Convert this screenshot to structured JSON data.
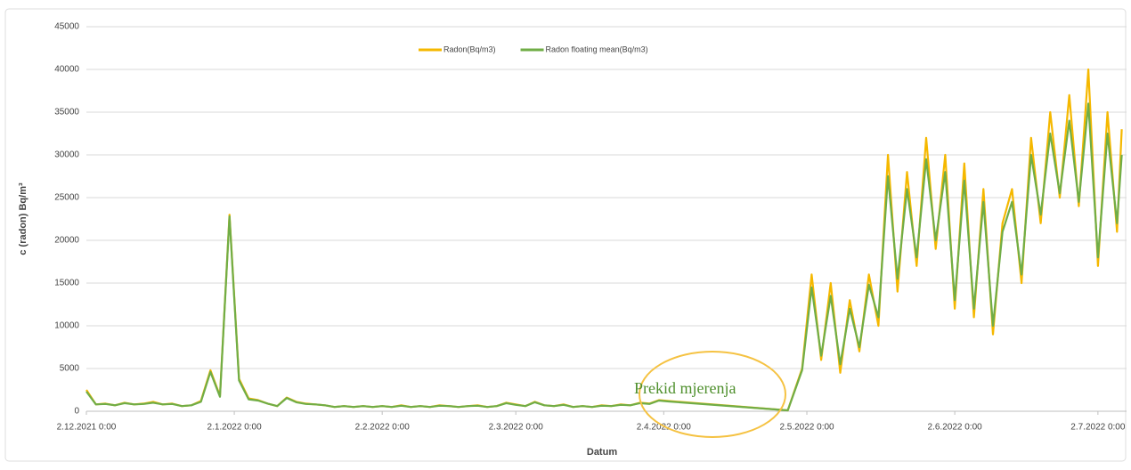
{
  "chart_data": {
    "type": "line",
    "xlabel": "Datum",
    "ylabel": "c (radon) Bq/m³",
    "annotation": "Prekid mjerenja",
    "x": [
      "2.12.2021 0:00",
      "4.12.2021 0:00",
      "6.12.2021 0:00",
      "8.12.2021 0:00",
      "10.12.2021 0:00",
      "12.12.2021 0:00",
      "14.12.2021 0:00",
      "16.12.2021 0:00",
      "18.12.2021 0:00",
      "20.12.2021 0:00",
      "22.12.2021 0:00",
      "24.12.2021 0:00",
      "26.12.2021 0:00",
      "28.12.2021 0:00",
      "30.12.2021 0:00",
      "1.1.2022 0:00",
      "3.1.2022 0:00",
      "5.1.2022 0:00",
      "7.1.2022 0:00",
      "9.1.2022 0:00",
      "11.1.2022 0:00",
      "13.1.2022 0:00",
      "15.1.2022 0:00",
      "17.1.2022 0:00",
      "19.1.2022 0:00",
      "21.1.2022 0:00",
      "23.1.2022 0:00",
      "25.1.2022 0:00",
      "27.1.2022 0:00",
      "29.1.2022 0:00",
      "31.1.2022 0:00",
      "2.2.2022 0:00",
      "4.2.2022 0:00",
      "6.2.2022 0:00",
      "8.2.2022 0:00",
      "10.2.2022 0:00",
      "12.2.2022 0:00",
      "14.2.2022 0:00",
      "16.2.2022 0:00",
      "18.2.2022 0:00",
      "20.2.2022 0:00",
      "22.2.2022 0:00",
      "24.2.2022 0:00",
      "26.2.2022 0:00",
      "28.2.2022 0:00",
      "2.3.2022 0:00",
      "4.3.2022 0:00",
      "6.3.2022 0:00",
      "8.3.2022 0:00",
      "10.3.2022 0:00",
      "12.3.2022 0:00",
      "14.3.2022 0:00",
      "16.3.2022 0:00",
      "18.3.2022 0:00",
      "20.3.2022 0:00",
      "22.3.2022 0:00",
      "24.3.2022 0:00",
      "26.3.2022 0:00",
      "28.3.2022 0:00",
      "30.3.2022 0:00",
      "1.4.2022 0:00",
      "3.4.2022 0:00",
      "28.4.2022 0:00",
      "1.5.2022 0:00",
      "3.5.2022 0:00",
      "5.5.2022 0:00",
      "7.5.2022 0:00",
      "9.5.2022 0:00",
      "11.5.2022 0:00",
      "13.5.2022 0:00",
      "15.5.2022 0:00",
      "17.5.2022 0:00",
      "19.5.2022 0:00",
      "21.5.2022 0:00",
      "23.5.2022 0:00",
      "25.5.2022 0:00",
      "27.5.2022 0:00",
      "29.5.2022 0:00",
      "31.5.2022 0:00",
      "2.6.2022 0:00",
      "4.6.2022 0:00",
      "6.6.2022 0:00",
      "8.6.2022 0:00",
      "10.6.2022 0:00",
      "12.6.2022 0:00",
      "14.6.2022 0:00",
      "16.6.2022 0:00",
      "18.6.2022 0:00",
      "20.6.2022 0:00",
      "22.6.2022 0:00",
      "24.6.2022 0:00",
      "26.6.2022 0:00",
      "28.6.2022 0:00",
      "30.6.2022 0:00",
      "2.7.2022 0:00",
      "4.7.2022 0:00",
      "6.7.2022 0:00",
      "7.7.2022 0:00"
    ],
    "series": [
      {
        "name": "Radon(Bq/m3)",
        "color": "#f5b800",
        "values": [
          2500,
          800,
          900,
          700,
          1000,
          800,
          900,
          1100,
          800,
          900,
          600,
          700,
          1200,
          4800,
          1800,
          23000,
          3800,
          1500,
          1300,
          900,
          600,
          1600,
          1100,
          900,
          800,
          700,
          500,
          600,
          500,
          600,
          500,
          600,
          500,
          700,
          500,
          600,
          500,
          700,
          600,
          500,
          600,
          700,
          500,
          600,
          1000,
          800,
          600,
          1100,
          700,
          600,
          800,
          500,
          600,
          500,
          700,
          600,
          800,
          700,
          1000,
          900,
          1300,
          1200,
          100,
          5000,
          16000,
          6000,
          15000,
          4500,
          13000,
          7000,
          16000,
          10000,
          30000,
          14000,
          28000,
          17000,
          32000,
          19000,
          30000,
          12000,
          29000,
          11000,
          26000,
          9000,
          22000,
          26000,
          15000,
          32000,
          22000,
          35000,
          25000,
          37000,
          24000,
          40000,
          17000,
          35000,
          21000,
          33000
        ]
      },
      {
        "name": "Radon floating mean(Bq/m3)",
        "color": "#70ad47",
        "values": [
          2300,
          800,
          850,
          700,
          950,
          800,
          850,
          1000,
          800,
          850,
          600,
          700,
          1100,
          4600,
          1700,
          22800,
          3600,
          1400,
          1250,
          900,
          600,
          1550,
          1050,
          850,
          800,
          700,
          500,
          600,
          500,
          600,
          500,
          600,
          500,
          650,
          500,
          600,
          500,
          650,
          600,
          500,
          600,
          650,
          500,
          600,
          950,
          750,
          600,
          1050,
          700,
          600,
          750,
          500,
          600,
          500,
          650,
          600,
          750,
          700,
          950,
          850,
          1250,
          1150,
          100,
          4800,
          14500,
          6500,
          13500,
          5500,
          12000,
          7500,
          14800,
          11000,
          27500,
          15500,
          26000,
          18000,
          29500,
          20000,
          28000,
          13000,
          27000,
          12000,
          24500,
          10000,
          21000,
          24500,
          16000,
          30000,
          23000,
          32500,
          25500,
          34000,
          24500,
          36000,
          18000,
          32500,
          22000,
          30000
        ]
      }
    ],
    "xlim": [
      "2.12.2021 0:00",
      "8.7.2022 0:00"
    ],
    "xticks": [
      "2.12.2021 0:00",
      "2.1.2022 0:00",
      "2.2.2022 0:00",
      "2.3.2022 0:00",
      "2.4.2022 0:00",
      "2.5.2022 0:00",
      "2.6.2022 0:00",
      "2.7.2022 0:00"
    ],
    "ylim": [
      0,
      45000
    ],
    "yticks": [
      0,
      5000,
      10000,
      15000,
      20000,
      25000,
      30000,
      35000,
      40000,
      45000
    ],
    "grid": true,
    "legend": "top"
  }
}
